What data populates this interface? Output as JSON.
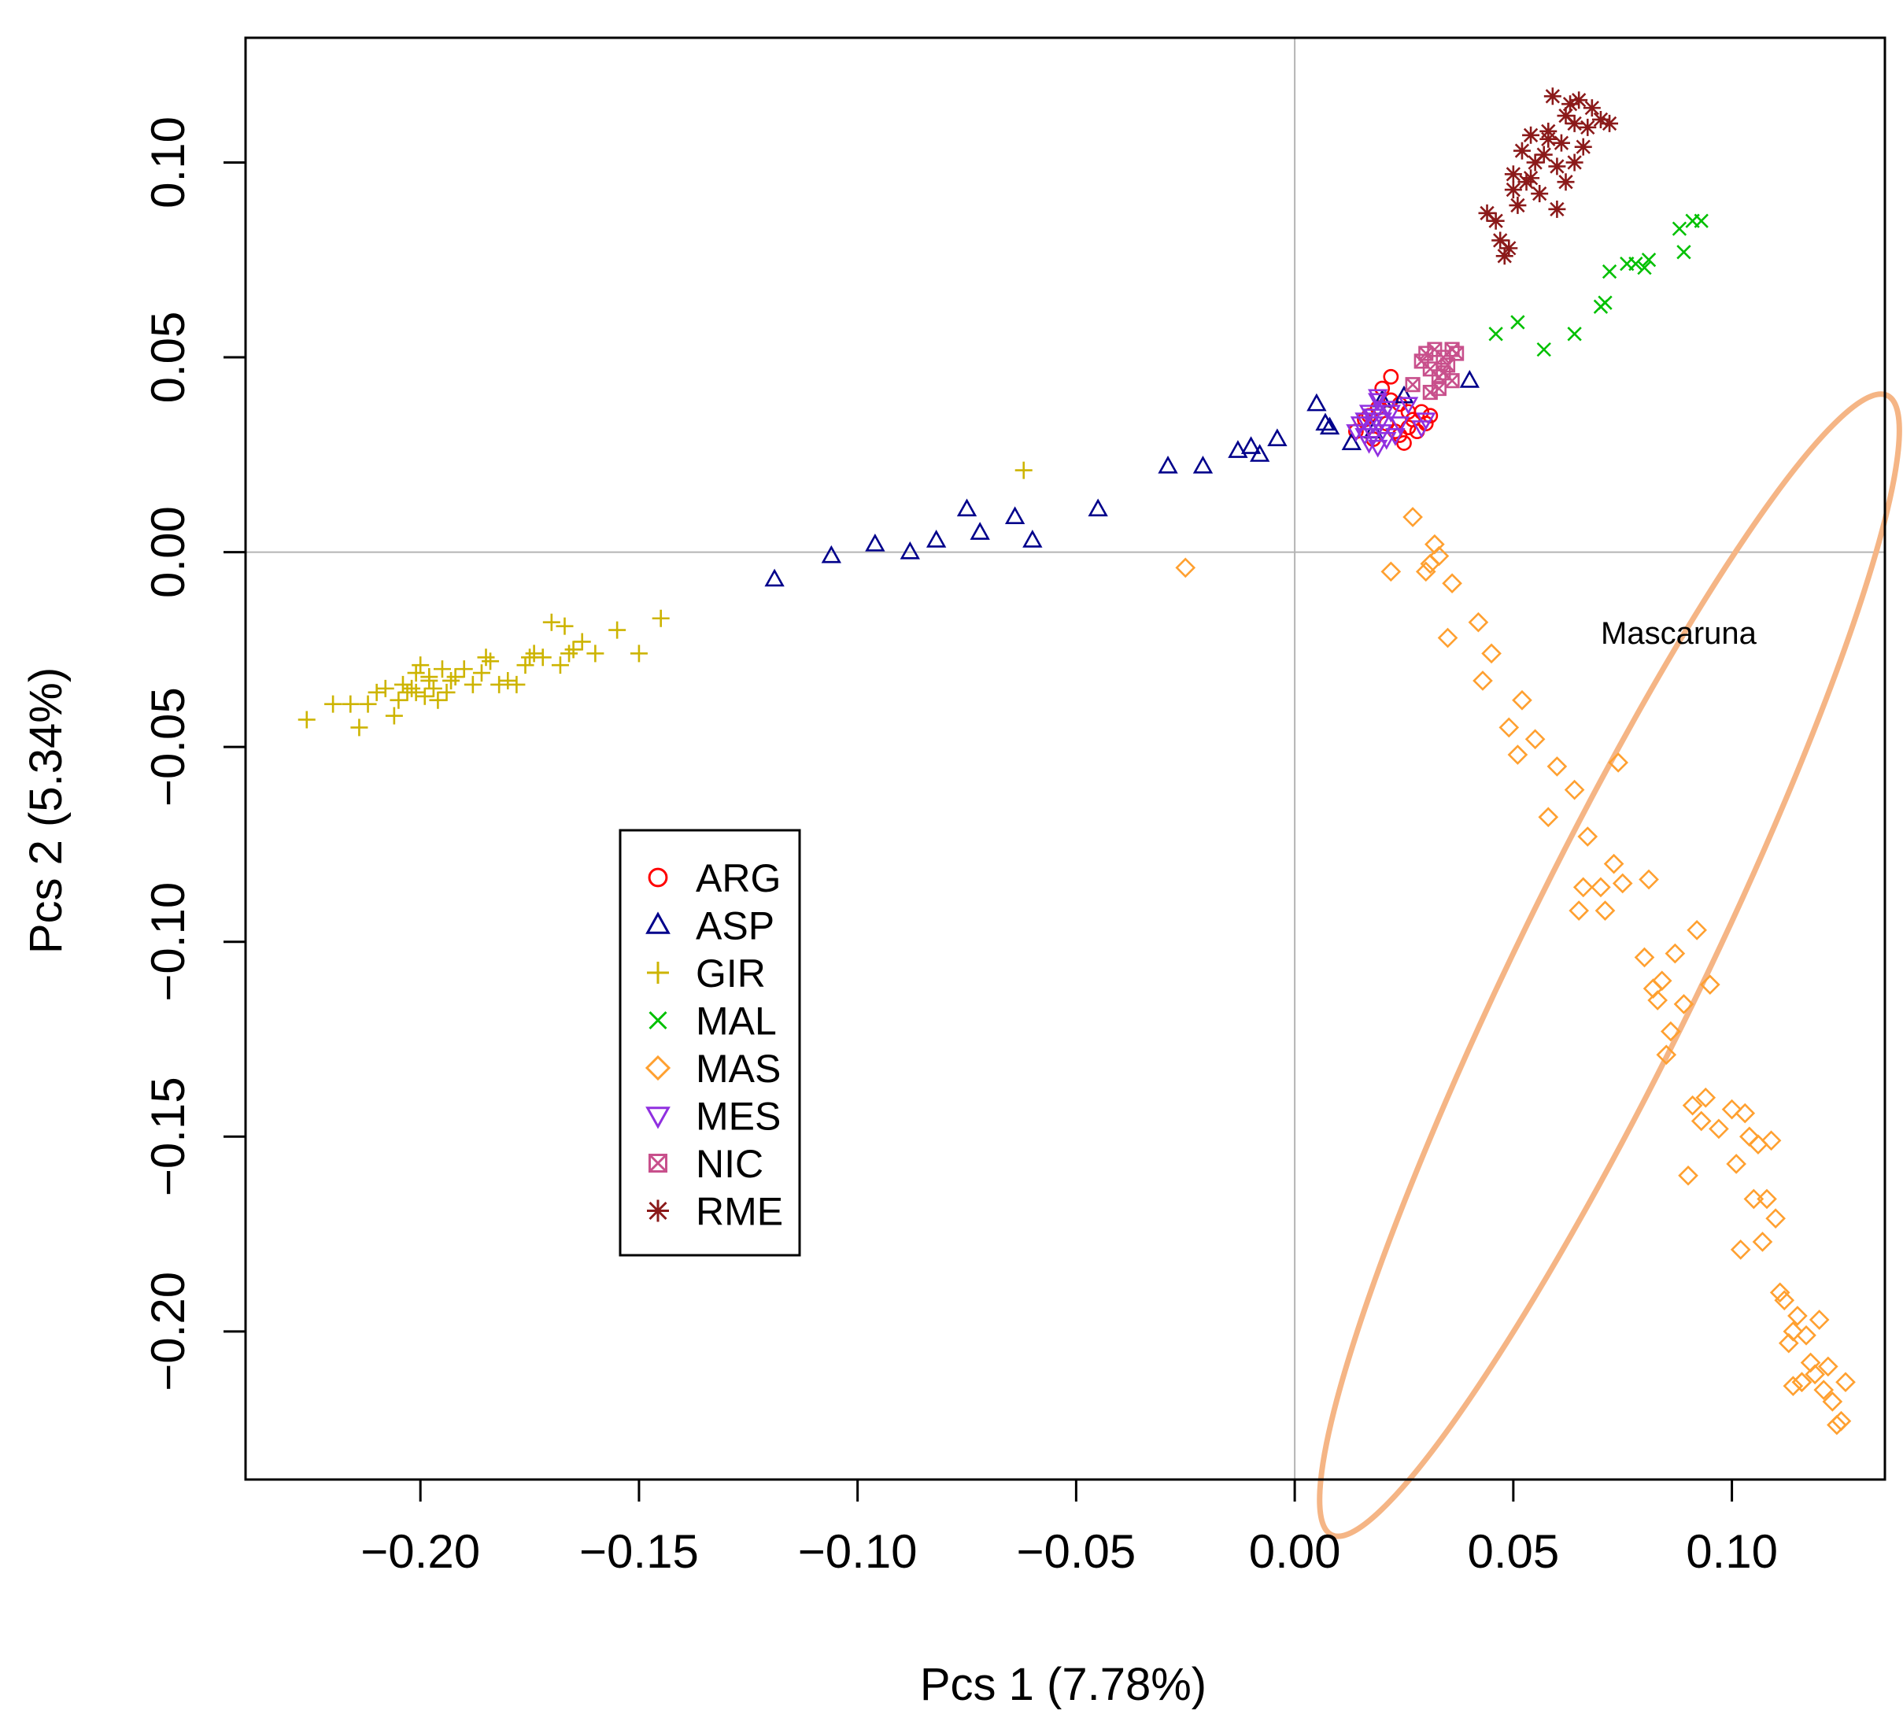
{
  "chart_data": {
    "type": "scatter",
    "title": "",
    "xlabel": "Pcs 1 (7.78%)",
    "ylabel": "Pcs 2 (5.34%)",
    "xlim": [
      -0.24,
      0.135
    ],
    "ylim": [
      -0.238,
      0.132
    ],
    "xticks": [
      -0.2,
      -0.15,
      -0.1,
      -0.05,
      0.0,
      0.05,
      0.1
    ],
    "xtick_labels": [
      "−0.20",
      "−0.15",
      "−0.10",
      "−0.05",
      "0.00",
      "0.05",
      "0.10"
    ],
    "yticks": [
      0.1,
      0.05,
      0.0,
      -0.05,
      -0.1,
      -0.15,
      -0.2
    ],
    "ytick_labels": [
      "0.10",
      "0.05",
      "0.00",
      "−0.05",
      "−0.10",
      "−0.15",
      "−0.20"
    ],
    "reference_lines": {
      "x": 0,
      "y": 0
    },
    "legend_position": "center-left",
    "annotation": {
      "text": "Mascaruna",
      "ellipse": {
        "cx": 0.072,
        "cy": -0.106,
        "rx": 0.145,
        "ry": 0.021,
        "angle_deg": -64
      }
    },
    "series": [
      {
        "name": "ARG",
        "marker": "circle",
        "color": "#FF0000",
        "x": [
          0.014,
          0.016,
          0.018,
          0.019,
          0.02,
          0.021,
          0.022,
          0.023,
          0.024,
          0.025,
          0.026,
          0.027,
          0.028,
          0.029,
          0.03,
          0.031,
          0.017,
          0.022,
          0.026,
          0.024
        ],
        "y": [
          0.031,
          0.034,
          0.029,
          0.037,
          0.042,
          0.033,
          0.045,
          0.031,
          0.038,
          0.028,
          0.036,
          0.034,
          0.031,
          0.036,
          0.033,
          0.035,
          0.035,
          0.039,
          0.032,
          0.03
        ]
      },
      {
        "name": "ASP",
        "marker": "triangle",
        "color": "#00008B",
        "x": [
          -0.119,
          -0.106,
          -0.096,
          -0.088,
          -0.082,
          -0.075,
          -0.072,
          -0.064,
          -0.06,
          -0.045,
          -0.029,
          -0.021,
          -0.013,
          -0.01,
          -0.008,
          -0.004,
          0.005,
          0.007,
          0.008,
          0.013,
          0.018,
          0.02,
          0.04,
          0.025
        ],
        "y": [
          -0.007,
          -0.001,
          0.002,
          0.0,
          0.003,
          0.011,
          0.005,
          0.009,
          0.003,
          0.011,
          0.022,
          0.022,
          0.026,
          0.027,
          0.025,
          0.029,
          0.038,
          0.033,
          0.032,
          0.028,
          0.031,
          0.039,
          0.044,
          0.04
        ]
      },
      {
        "name": "GIR",
        "marker": "plus",
        "color": "#CDB400",
        "x": [
          -0.062,
          -0.145,
          -0.15,
          -0.155,
          -0.16,
          -0.163,
          -0.165,
          -0.167,
          -0.168,
          -0.17,
          -0.172,
          -0.174,
          -0.176,
          -0.178,
          -0.18,
          -0.182,
          -0.184,
          -0.186,
          -0.188,
          -0.19,
          -0.192,
          -0.194,
          -0.195,
          -0.196,
          -0.197,
          -0.198,
          -0.199,
          -0.2,
          -0.201,
          -0.202,
          -0.203,
          -0.204,
          -0.205,
          -0.206,
          -0.208,
          -0.21,
          -0.212,
          -0.214,
          -0.216,
          -0.22,
          -0.226,
          -0.185,
          -0.193,
          -0.166,
          -0.175,
          -0.198,
          -0.201
        ],
        "y": [
          0.021,
          -0.017,
          -0.026,
          -0.02,
          -0.026,
          -0.023,
          -0.025,
          -0.019,
          -0.029,
          -0.018,
          -0.027,
          -0.026,
          -0.029,
          -0.034,
          -0.033,
          -0.034,
          -0.028,
          -0.031,
          -0.034,
          -0.03,
          -0.032,
          -0.036,
          -0.03,
          -0.038,
          -0.035,
          -0.033,
          -0.037,
          -0.029,
          -0.031,
          -0.035,
          -0.036,
          -0.034,
          -0.038,
          -0.042,
          -0.035,
          -0.036,
          -0.039,
          -0.045,
          -0.039,
          -0.039,
          -0.043,
          -0.027,
          -0.033,
          -0.026,
          -0.027,
          -0.032,
          -0.036
        ]
      },
      {
        "name": "MAL",
        "marker": "x",
        "color": "#00C000",
        "x": [
          0.046,
          0.051,
          0.057,
          0.064,
          0.07,
          0.071,
          0.072,
          0.076,
          0.078,
          0.08,
          0.081,
          0.088,
          0.089,
          0.091,
          0.093
        ],
        "y": [
          0.056,
          0.059,
          0.052,
          0.056,
          0.063,
          0.064,
          0.072,
          0.074,
          0.074,
          0.073,
          0.075,
          0.083,
          0.077,
          0.085,
          0.085
        ]
      },
      {
        "name": "MAS",
        "marker": "diamond",
        "color": "#FFA030",
        "x": [
          -0.025,
          0.022,
          0.027,
          0.03,
          0.031,
          0.032,
          0.033,
          0.035,
          0.036,
          0.042,
          0.043,
          0.045,
          0.049,
          0.051,
          0.052,
          0.055,
          0.058,
          0.06,
          0.064,
          0.065,
          0.066,
          0.067,
          0.07,
          0.071,
          0.073,
          0.074,
          0.075,
          0.08,
          0.081,
          0.082,
          0.083,
          0.084,
          0.085,
          0.086,
          0.087,
          0.089,
          0.09,
          0.091,
          0.092,
          0.093,
          0.094,
          0.095,
          0.097,
          0.1,
          0.101,
          0.102,
          0.103,
          0.104,
          0.105,
          0.106,
          0.107,
          0.108,
          0.109,
          0.11,
          0.111,
          0.112,
          0.113,
          0.114,
          0.115,
          0.116,
          0.117,
          0.118,
          0.119,
          0.12,
          0.121,
          0.122,
          0.123,
          0.124,
          0.125,
          0.126,
          0.114,
          0.116
        ],
        "y": [
          -0.004,
          -0.005,
          0.009,
          -0.005,
          -0.003,
          0.002,
          -0.001,
          -0.022,
          -0.008,
          -0.018,
          -0.033,
          -0.026,
          -0.045,
          -0.052,
          -0.038,
          -0.048,
          -0.068,
          -0.055,
          -0.061,
          -0.092,
          -0.086,
          -0.073,
          -0.086,
          -0.092,
          -0.08,
          -0.054,
          -0.085,
          -0.104,
          -0.084,
          -0.112,
          -0.115,
          -0.11,
          -0.129,
          -0.123,
          -0.103,
          -0.116,
          -0.16,
          -0.142,
          -0.097,
          -0.146,
          -0.14,
          -0.111,
          -0.148,
          -0.143,
          -0.157,
          -0.179,
          -0.144,
          -0.15,
          -0.166,
          -0.152,
          -0.177,
          -0.166,
          -0.151,
          -0.171,
          -0.19,
          -0.192,
          -0.203,
          -0.2,
          -0.196,
          -0.213,
          -0.201,
          -0.208,
          -0.211,
          -0.197,
          -0.215,
          -0.209,
          -0.218,
          -0.224,
          -0.223,
          -0.213,
          -0.214,
          -0.213
        ]
      },
      {
        "name": "MES",
        "marker": "triangle-down",
        "color": "#9030E0",
        "x": [
          0.014,
          0.015,
          0.016,
          0.017,
          0.017,
          0.018,
          0.018,
          0.019,
          0.019,
          0.02,
          0.02,
          0.021,
          0.022,
          0.023,
          0.024,
          0.026,
          0.029,
          0.03,
          0.016,
          0.019,
          0.021,
          0.018
        ],
        "y": [
          0.031,
          0.033,
          0.03,
          0.028,
          0.036,
          0.03,
          0.033,
          0.027,
          0.039,
          0.031,
          0.034,
          0.029,
          0.036,
          0.03,
          0.033,
          0.038,
          0.032,
          0.034,
          0.034,
          0.04,
          0.037,
          0.035
        ]
      },
      {
        "name": "NIC",
        "marker": "square-x",
        "color": "#C8508C",
        "x": [
          0.027,
          0.029,
          0.03,
          0.031,
          0.032,
          0.033,
          0.034,
          0.035,
          0.036,
          0.037,
          0.031,
          0.034,
          0.036,
          0.033
        ],
        "y": [
          0.043,
          0.049,
          0.051,
          0.047,
          0.052,
          0.045,
          0.05,
          0.048,
          0.044,
          0.051,
          0.041,
          0.046,
          0.052,
          0.042
        ]
      },
      {
        "name": "RME",
        "marker": "asterisk",
        "color": "#8B1A1A",
        "x": [
          0.044,
          0.046,
          0.047,
          0.048,
          0.049,
          0.05,
          0.051,
          0.052,
          0.053,
          0.054,
          0.055,
          0.056,
          0.057,
          0.058,
          0.059,
          0.06,
          0.061,
          0.062,
          0.063,
          0.064,
          0.065,
          0.066,
          0.067,
          0.068,
          0.07,
          0.072,
          0.06,
          0.054,
          0.064,
          0.058,
          0.05,
          0.062
        ],
        "y": [
          0.087,
          0.085,
          0.08,
          0.076,
          0.078,
          0.093,
          0.089,
          0.103,
          0.095,
          0.107,
          0.1,
          0.092,
          0.102,
          0.108,
          0.117,
          0.099,
          0.105,
          0.112,
          0.115,
          0.11,
          0.116,
          0.104,
          0.109,
          0.114,
          0.111,
          0.11,
          0.088,
          0.096,
          0.1,
          0.106,
          0.097,
          0.095
        ]
      }
    ]
  }
}
